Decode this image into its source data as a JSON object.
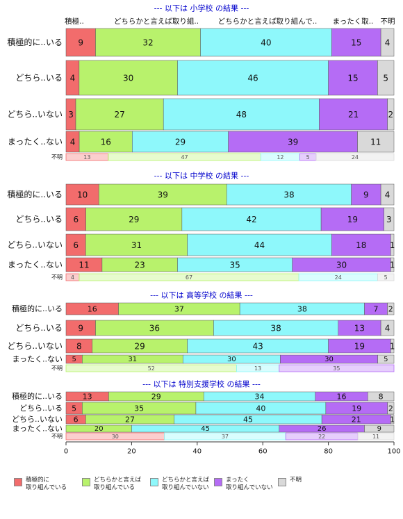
{
  "chart_data": {
    "type": "bar",
    "orientation": "horizontal",
    "stacked": true,
    "normalized_percent": true,
    "xlim": [
      0,
      100
    ],
    "x_ticks": [
      "0",
      "20",
      "40",
      "60",
      "80",
      "100"
    ],
    "legend_position": "bottom",
    "series": [
      {
        "name": "積極的に\n取り組んでいる",
        "color": "#f26c6c"
      },
      {
        "name": "どちらかと言えば\n取り組んでいる",
        "color": "#b8f26c"
      },
      {
        "name": "どちらかと言えば\n取り組んでいない",
        "color": "#8ef8fb"
      },
      {
        "name": "まったく\n取り組んでいない",
        "color": "#b56cf5"
      },
      {
        "name": "不明",
        "color": "#d9d9d9"
      }
    ],
    "panels": [
      {
        "title": "--- 以下は 小学校 の結果 ---",
        "col_headers": [
          "積極..",
          "どちらかと言えば取り組..",
          "どちらかと言えば取り組んで..",
          "まったく取..",
          "不明"
        ],
        "rows": [
          {
            "label": "積極的に..いる",
            "values": [
              9,
              32,
              40,
              15,
              4
            ]
          },
          {
            "label": "どちら..いる",
            "values": [
              4,
              30,
              46,
              15,
              5
            ]
          },
          {
            "label": "どちら..いない",
            "values": [
              3,
              27,
              48,
              21,
              2
            ]
          },
          {
            "label": "まったく..ない",
            "values": [
              4,
              16,
              29,
              39,
              11
            ]
          }
        ],
        "unknown": {
          "label": "不明",
          "values": [
            13,
            47,
            12,
            5,
            24
          ]
        }
      },
      {
        "title": "--- 以下は 中学校 の結果 ---",
        "rows": [
          {
            "label": "積極的に..いる",
            "values": [
              10,
              39,
              38,
              9,
              4
            ]
          },
          {
            "label": "どちら..いる",
            "values": [
              6,
              29,
              42,
              19,
              3
            ]
          },
          {
            "label": "どちら..いない",
            "values": [
              6,
              31,
              44,
              18,
              1
            ]
          },
          {
            "label": "まったく..ない",
            "values": [
              11,
              23,
              35,
              30,
              1
            ]
          }
        ],
        "unknown": {
          "label": "不明",
          "values": [
            4,
            67,
            24,
            0,
            5
          ]
        }
      },
      {
        "title": "--- 以下は 高等学校 の結果 ---",
        "rows": [
          {
            "label": "積極的に..いる",
            "values": [
              16,
              37,
              38,
              7,
              2
            ]
          },
          {
            "label": "どちら..いる",
            "values": [
              9,
              36,
              38,
              13,
              4
            ]
          },
          {
            "label": "どちら..いない",
            "values": [
              8,
              29,
              43,
              19,
              1
            ]
          },
          {
            "label": "まったく..ない",
            "values": [
              5,
              31,
              30,
              30,
              5
            ]
          }
        ],
        "unknown": {
          "label": "不明",
          "values": [
            0,
            52,
            13,
            35,
            0
          ]
        }
      },
      {
        "title": "--- 以下は 特別支援学校 の結果 ---",
        "rows": [
          {
            "label": "積極的に..いる",
            "values": [
              13,
              29,
              34,
              16,
              8
            ]
          },
          {
            "label": "どちら..いる",
            "values": [
              5,
              35,
              40,
              19,
              2
            ]
          },
          {
            "label": "どちら..いない",
            "values": [
              6,
              27,
              45,
              21,
              1
            ]
          },
          {
            "label": "まったく..ない",
            "values": [
              0,
              20,
              45,
              26,
              9
            ]
          }
        ],
        "unknown": {
          "label": "不明",
          "values": [
            30,
            0,
            37,
            22,
            11
          ]
        }
      }
    ]
  }
}
